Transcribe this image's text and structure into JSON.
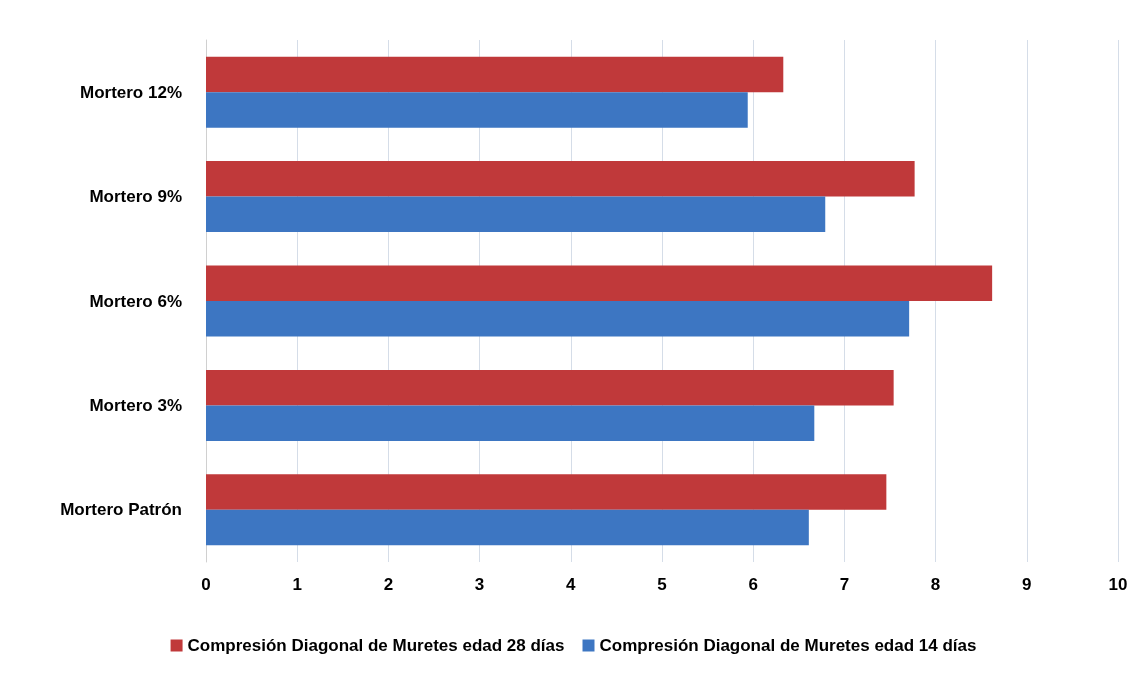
{
  "chart_data": {
    "type": "bar",
    "orientation": "horizontal",
    "categories": [
      "Mortero 12%",
      "Mortero 9%",
      "Mortero 6%",
      "Mortero 3%",
      "Mortero Patrón"
    ],
    "series": [
      {
        "name": "Compresión Diagonal de Muretes edad 28 días",
        "color": "#c0393a",
        "values": [
          6.33,
          7.77,
          8.62,
          7.54,
          7.46
        ]
      },
      {
        "name": "Compresión Diagonal de Muretes edad 14 días",
        "color": "#3d76c2",
        "values": [
          5.94,
          6.79,
          7.71,
          6.67,
          6.61
        ]
      }
    ],
    "xlim": [
      0,
      10
    ],
    "xticks": [
      0,
      1,
      2,
      3,
      4,
      5,
      6,
      7,
      8,
      9,
      10
    ],
    "grid": "x",
    "legend": "bottom"
  }
}
